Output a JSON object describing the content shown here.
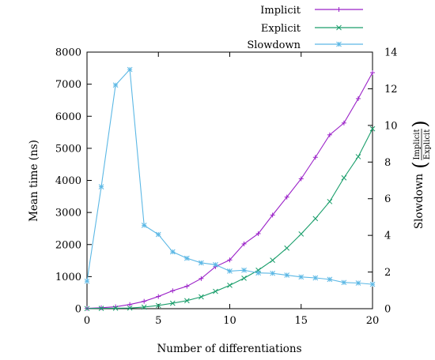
{
  "chart_data": {
    "type": "line",
    "xlabel": "Number of differentiations",
    "ylabel": "Mean time (ns)",
    "y2label": "Slowdown",
    "y2label_fraction": {
      "numerator": "Implicit",
      "denominator": "Explicit"
    },
    "xlim": [
      0,
      20
    ],
    "ylim": [
      0,
      8000
    ],
    "y2lim": [
      0,
      14
    ],
    "x_ticks": [
      0,
      5,
      10,
      15,
      20
    ],
    "y_ticks": [
      0,
      1000,
      2000,
      3000,
      4000,
      5000,
      6000,
      7000,
      8000
    ],
    "y2_ticks": [
      0,
      2,
      4,
      6,
      8,
      10,
      12,
      14
    ],
    "grid": false,
    "legend_position": "top-right, above plot",
    "x": [
      0,
      1,
      2,
      3,
      4,
      5,
      6,
      7,
      8,
      9,
      10,
      11,
      12,
      13,
      14,
      15,
      16,
      17,
      18,
      19,
      20
    ],
    "series": [
      {
        "name": "Implicit",
        "axis": "left",
        "marker": "+",
        "color": "#9b22c8",
        "values": [
          10,
          30,
          60,
          130,
          230,
          380,
          560,
          700,
          940,
          1310,
          1520,
          2020,
          2340,
          2920,
          3480,
          4050,
          4720,
          5420,
          5790,
          6550,
          7360
        ]
      },
      {
        "name": "Explicit",
        "axis": "left",
        "marker": "x",
        "color": "#1a9e6b",
        "values": [
          5,
          10,
          15,
          20,
          50,
          100,
          170,
          250,
          370,
          540,
          730,
          950,
          1200,
          1510,
          1890,
          2330,
          2810,
          3340,
          4080,
          4740,
          5610
        ]
      },
      {
        "name": "Slowdown",
        "axis": "right",
        "marker": "star",
        "color": "#5cb8e5",
        "values": [
          1.5,
          6.65,
          12.2,
          13.05,
          4.55,
          4.05,
          3.1,
          2.75,
          2.5,
          2.4,
          2.05,
          2.1,
          1.95,
          1.93,
          1.83,
          1.73,
          1.68,
          1.6,
          1.43,
          1.4,
          1.33
        ]
      }
    ]
  }
}
